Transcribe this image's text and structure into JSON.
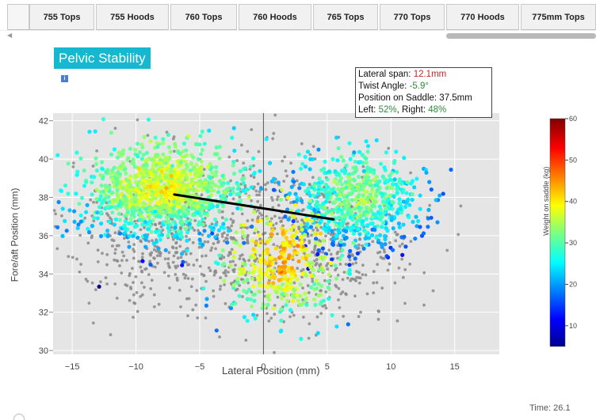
{
  "tabs": [
    {
      "label": ""
    },
    {
      "label": "755 Tops"
    },
    {
      "label": "755 Hoods"
    },
    {
      "label": "760 Tops"
    },
    {
      "label": "760 Hoods"
    },
    {
      "label": "765 Tops"
    },
    {
      "label": "770 Tops"
    },
    {
      "label": "770 Hoods"
    },
    {
      "label": "775mm Tops"
    }
  ],
  "panel": {
    "title": "Pelvic Stability",
    "info_label": "i"
  },
  "stats": {
    "lateral_span_label": "Lateral span: ",
    "lateral_span_value": "12.1mm",
    "twist_angle_label": "Twist Angle: ",
    "twist_angle_value": "-5.9°",
    "position_label": "Position on Saddle: 37.5mm",
    "left_label": "Left: ",
    "left_value": "52%",
    "right_label": ", Right: ",
    "right_value": "48%"
  },
  "footer": {
    "time": "Time: 26.1"
  },
  "colors": {
    "tab_bg": "#f1f1f1",
    "title_bg": "#16b8d0",
    "plot_bg": "#e5e5e5",
    "gray_points": "#8a8a8a",
    "line": "#000000"
  },
  "chart_data": {
    "type": "scatter",
    "title": "",
    "xlabel": "Lateral Position (mm)",
    "ylabel": "Fore/aft Position (mm)",
    "xlim": [
      -16.5,
      18.5
    ],
    "ylim": [
      29.8,
      42.4
    ],
    "x_ticks": [
      -15,
      -10,
      -5,
      0,
      5,
      10,
      15
    ],
    "x_tick_labels": [
      "−15",
      "−10",
      "−5",
      "0",
      "5",
      "10",
      "15"
    ],
    "y_ticks": [
      30,
      32,
      34,
      36,
      38,
      40,
      42
    ],
    "y_tick_labels": [
      "30",
      "32",
      "34",
      "36",
      "38",
      "40",
      "42"
    ],
    "grid": true,
    "colorbar": {
      "label": "Weight on saddle (kg)",
      "range": [
        5,
        60
      ],
      "ticks": [
        10,
        20,
        30,
        40,
        50,
        60
      ],
      "colorscale": "jet"
    },
    "series": [
      {
        "kind": "gray-trace",
        "clusters": [
          {
            "cx": -7,
            "cy": 36.0,
            "sx": 4.3,
            "sy": 2.0,
            "n": 520
          },
          {
            "cx": 4.5,
            "cy": 35.5,
            "sx": 3.8,
            "sy": 2.0,
            "n": 420
          },
          {
            "cx": 0,
            "cy": 37.5,
            "sx": 2.0,
            "sy": 3.0,
            "n": 80
          }
        ]
      },
      {
        "kind": "colored-left",
        "cx": -8.0,
        "cy": 38.3,
        "sx": 3.0,
        "sy": 1.2,
        "n": 1150,
        "weight_center": 36
      },
      {
        "kind": "colored-right",
        "cx": 7.5,
        "cy": 37.8,
        "sx": 2.4,
        "sy": 1.2,
        "n": 650,
        "weight_center": 31
      },
      {
        "kind": "colored-center",
        "cx": 1.5,
        "cy": 34.5,
        "sx": 2.2,
        "sy": 1.5,
        "n": 380,
        "weight_center": 40
      }
    ],
    "trend_line": {
      "x": [
        -7.0,
        5.5
      ],
      "y": [
        38.15,
        36.85
      ]
    },
    "center_line_x": 0
  }
}
